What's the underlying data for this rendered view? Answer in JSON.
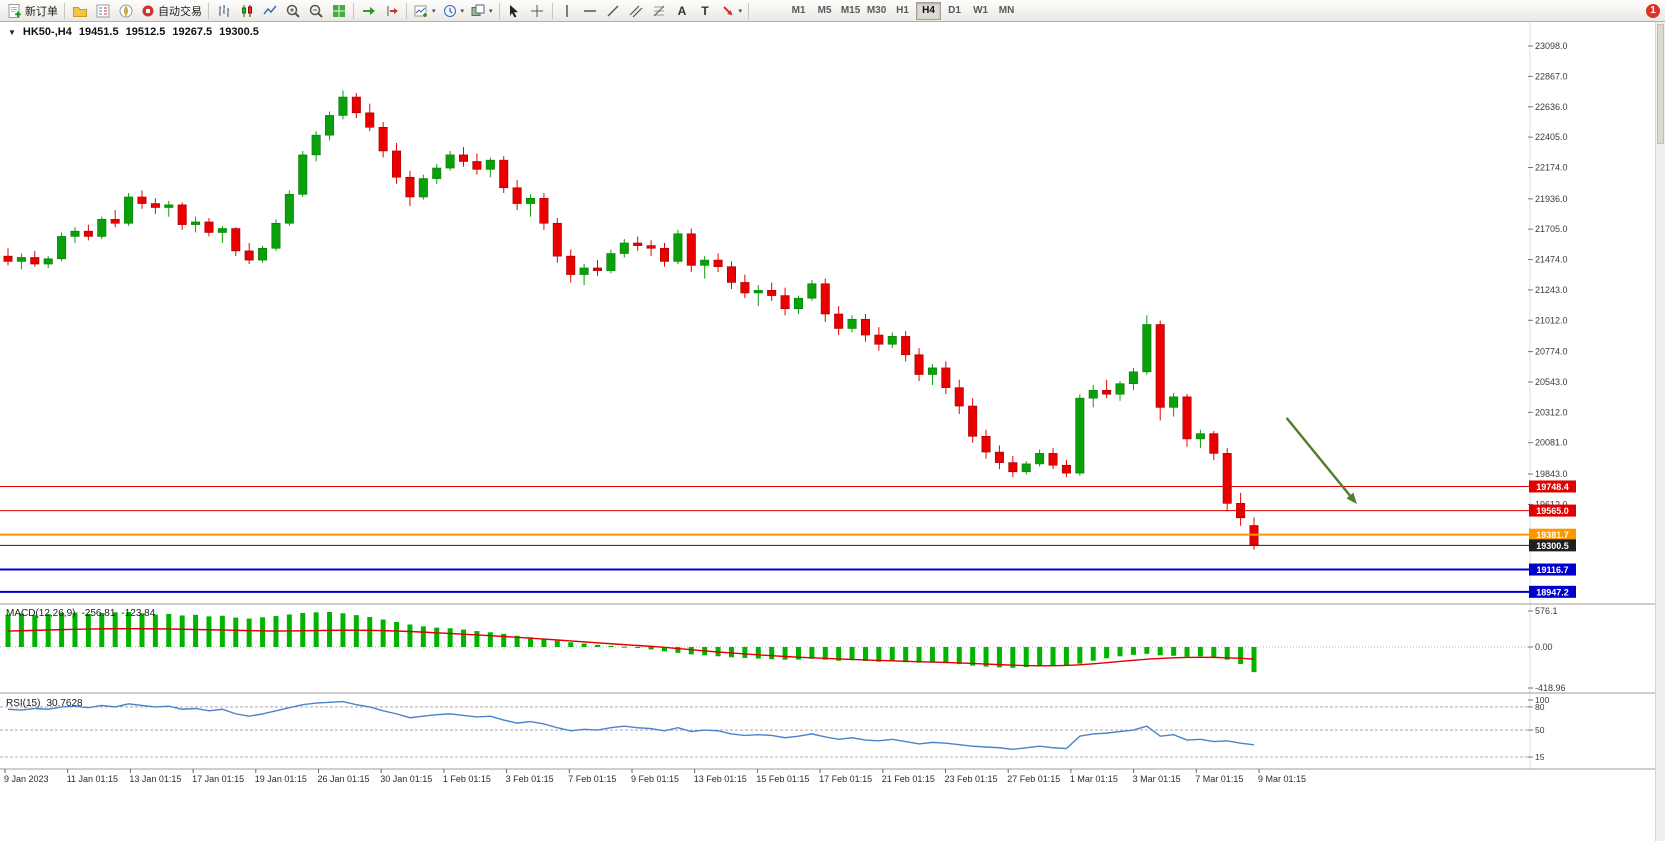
{
  "toolbar": {
    "new_order_label": "新订单",
    "autotrading_label": "自动交易",
    "badge_count": "1",
    "active_timeframe": "H4",
    "timeframes": [
      "M1",
      "M5",
      "M15",
      "M30",
      "H1",
      "H4",
      "D1",
      "W1",
      "MN"
    ],
    "items": [
      {
        "name": "new-order",
        "label": "新订单",
        "icon": "new-order-icon"
      },
      {
        "sep": true
      },
      {
        "name": "charts-profile",
        "icon": "profile-icon"
      },
      {
        "name": "market-watch",
        "icon": "market-watch-icon"
      },
      {
        "name": "navigator",
        "icon": "navigator-icon"
      },
      {
        "name": "autotrading",
        "label": "自动交易",
        "icon": "autotrading-icon"
      },
      {
        "sep": true
      },
      {
        "name": "bar-chart",
        "icon": "bar-chart-icon"
      },
      {
        "name": "candlestick-chart",
        "icon": "candlestick-icon"
      },
      {
        "name": "line-chart",
        "icon": "line-chart-icon"
      },
      {
        "name": "zoom-in",
        "icon": "zoom-in-icon"
      },
      {
        "name": "zoom-out",
        "icon": "zoom-out-icon"
      },
      {
        "name": "tile-windows",
        "icon": "tile-windows-icon"
      },
      {
        "sep": true
      },
      {
        "name": "auto-scroll",
        "icon": "auto-scroll-icon"
      },
      {
        "name": "chart-shift",
        "icon": "chart-shift-icon"
      },
      {
        "sep": true
      },
      {
        "name": "new-chart",
        "icon": "new-chart-icon",
        "caret": true
      },
      {
        "name": "period",
        "icon": "period-icon",
        "caret": true
      },
      {
        "name": "templates",
        "icon": "templates-icon",
        "caret": true
      },
      {
        "sep": true
      },
      {
        "name": "cursor",
        "icon": "cursor-icon"
      },
      {
        "name": "crosshair",
        "icon": "crosshair-icon"
      },
      {
        "sep": true
      },
      {
        "name": "vertical-line",
        "icon": "vline-icon"
      },
      {
        "name": "horizontal-line",
        "icon": "hline-icon"
      },
      {
        "name": "trendline",
        "icon": "trendline-icon"
      },
      {
        "name": "equidistant-channel",
        "icon": "channel-icon"
      },
      {
        "name": "fibonacci",
        "icon": "fibo-icon"
      },
      {
        "name": "text",
        "icon": "text-icon"
      },
      {
        "name": "text-label",
        "icon": "label-icon"
      },
      {
        "name": "arrows",
        "icon": "arrows-icon",
        "caret": true
      },
      {
        "sep": true
      }
    ]
  },
  "colors": {
    "bull": "#0aa00a",
    "bear": "#ea0000",
    "macd_hist": "#00b400",
    "macd_signal": "#e00000",
    "rsi_line": "#4b83c8",
    "axis_text": "#3a3a3a",
    "arrow": "#4f7f2f"
  },
  "chart_data": {
    "type": "candlestick",
    "symbol": "HK50-",
    "timeframe": "H4",
    "header": {
      "symbol": "HK50-,H4",
      "open": "19451.5",
      "high": "19512.5",
      "low": "19267.5",
      "close": "19300.5"
    },
    "price_axis_ticks": [
      "23098.0",
      "22867.0",
      "22636.0",
      "22405.0",
      "22174.0",
      "21936.0",
      "21705.0",
      "21474.0",
      "21243.0",
      "21012.0",
      "20774.0",
      "20543.0",
      "20312.0",
      "20081.0",
      "19843.0",
      "19612.0"
    ],
    "levels": [
      {
        "price": 19748.4,
        "label": "19748.4",
        "color": "#e00000",
        "width": 1
      },
      {
        "price": 19565.0,
        "label": "19565.0",
        "color": "#e00000",
        "width": 1
      },
      {
        "price": 19381.7,
        "label": "19381.7",
        "color": "#ff9800",
        "width": 2
      },
      {
        "price": 19300.5,
        "label": "19300.5",
        "color": "#202020",
        "width": 1,
        "role": "bid"
      },
      {
        "price": 19116.7,
        "label": "19116.7",
        "color": "#0000cd",
        "width": 2
      },
      {
        "price": 18947.2,
        "label": "18947.2",
        "color": "#0000cd",
        "width": 2
      }
    ],
    "time_labels": [
      "9 Jan 2023",
      "11 Jan 01:15",
      "13 Jan 01:15",
      "17 Jan 01:15",
      "19 Jan 01:15",
      "26 Jan 01:15",
      "30 Jan 01:15",
      "1 Feb 01:15",
      "3 Feb 01:15",
      "7 Feb 01:15",
      "9 Feb 01:15",
      "13 Feb 01:15",
      "15 Feb 01:15",
      "17 Feb 01:15",
      "21 Feb 01:15",
      "23 Feb 01:15",
      "27 Feb 01:15",
      "1 Mar 01:15",
      "3 Mar 01:15",
      "7 Mar 01:15",
      "9 Mar 01:15"
    ],
    "candles_ohlc": [
      [
        21500,
        21560,
        21430,
        21460
      ],
      [
        21460,
        21520,
        21400,
        21490
      ],
      [
        21490,
        21540,
        21420,
        21440
      ],
      [
        21440,
        21500,
        21410,
        21480
      ],
      [
        21480,
        21680,
        21460,
        21650
      ],
      [
        21650,
        21720,
        21600,
        21690
      ],
      [
        21690,
        21740,
        21620,
        21650
      ],
      [
        21650,
        21800,
        21630,
        21780
      ],
      [
        21780,
        21850,
        21720,
        21750
      ],
      [
        21750,
        21980,
        21730,
        21950
      ],
      [
        21950,
        22000,
        21860,
        21900
      ],
      [
        21900,
        21940,
        21820,
        21870
      ],
      [
        21870,
        21920,
        21800,
        21890
      ],
      [
        21890,
        21910,
        21700,
        21740
      ],
      [
        21740,
        21800,
        21680,
        21760
      ],
      [
        21760,
        21790,
        21650,
        21680
      ],
      [
        21680,
        21730,
        21600,
        21710
      ],
      [
        21710,
        21720,
        21500,
        21540
      ],
      [
        21540,
        21600,
        21440,
        21470
      ],
      [
        21470,
        21580,
        21450,
        21560
      ],
      [
        21560,
        21780,
        21540,
        21750
      ],
      [
        21750,
        22000,
        21730,
        21970
      ],
      [
        21970,
        22300,
        21950,
        22270
      ],
      [
        22270,
        22450,
        22220,
        22420
      ],
      [
        22420,
        22600,
        22380,
        22570
      ],
      [
        22570,
        22760,
        22540,
        22710
      ],
      [
        22710,
        22740,
        22550,
        22590
      ],
      [
        22590,
        22660,
        22450,
        22480
      ],
      [
        22480,
        22520,
        22250,
        22300
      ],
      [
        22300,
        22360,
        22050,
        22100
      ],
      [
        22100,
        22150,
        21880,
        21950
      ],
      [
        21950,
        22120,
        21930,
        22090
      ],
      [
        22090,
        22200,
        22050,
        22170
      ],
      [
        22170,
        22300,
        22150,
        22270
      ],
      [
        22270,
        22330,
        22180,
        22220
      ],
      [
        22220,
        22280,
        22120,
        22160
      ],
      [
        22160,
        22250,
        22100,
        22230
      ],
      [
        22230,
        22260,
        21980,
        22020
      ],
      [
        22020,
        22080,
        21850,
        21900
      ],
      [
        21900,
        21970,
        21800,
        21940
      ],
      [
        21940,
        21980,
        21700,
        21750
      ],
      [
        21750,
        21790,
        21450,
        21500
      ],
      [
        21500,
        21550,
        21300,
        21360
      ],
      [
        21360,
        21440,
        21280,
        21410
      ],
      [
        21410,
        21470,
        21350,
        21390
      ],
      [
        21390,
        21550,
        21370,
        21520
      ],
      [
        21520,
        21630,
        21490,
        21600
      ],
      [
        21600,
        21650,
        21540,
        21580
      ],
      [
        21580,
        21620,
        21500,
        21560
      ],
      [
        21560,
        21600,
        21420,
        21460
      ],
      [
        21460,
        21700,
        21440,
        21670
      ],
      [
        21670,
        21710,
        21380,
        21430
      ],
      [
        21430,
        21500,
        21330,
        21470
      ],
      [
        21470,
        21520,
        21380,
        21420
      ],
      [
        21420,
        21460,
        21250,
        21300
      ],
      [
        21300,
        21360,
        21180,
        21220
      ],
      [
        21220,
        21280,
        21120,
        21240
      ],
      [
        21240,
        21300,
        21160,
        21200
      ],
      [
        21200,
        21260,
        21050,
        21100
      ],
      [
        21100,
        21200,
        21060,
        21180
      ],
      [
        21180,
        21320,
        21160,
        21290
      ],
      [
        21290,
        21330,
        21000,
        21060
      ],
      [
        21060,
        21120,
        20900,
        20950
      ],
      [
        20950,
        21050,
        20920,
        21020
      ],
      [
        21020,
        21060,
        20850,
        20900
      ],
      [
        20900,
        20960,
        20780,
        20830
      ],
      [
        20830,
        20920,
        20800,
        20890
      ],
      [
        20890,
        20930,
        20700,
        20750
      ],
      [
        20750,
        20800,
        20550,
        20600
      ],
      [
        20600,
        20680,
        20520,
        20650
      ],
      [
        20650,
        20700,
        20450,
        20500
      ],
      [
        20500,
        20560,
        20300,
        20360
      ],
      [
        20360,
        20420,
        20080,
        20130
      ],
      [
        20130,
        20180,
        19960,
        20010
      ],
      [
        20010,
        20060,
        19880,
        19930
      ],
      [
        19930,
        19980,
        19820,
        19860
      ],
      [
        19860,
        19940,
        19840,
        19920
      ],
      [
        19920,
        20030,
        19900,
        20000
      ],
      [
        20000,
        20040,
        19880,
        19910
      ],
      [
        19910,
        19950,
        19820,
        19850
      ],
      [
        19850,
        20450,
        19830,
        20420
      ],
      [
        20420,
        20520,
        20350,
        20480
      ],
      [
        20480,
        20560,
        20420,
        20450
      ],
      [
        20450,
        20550,
        20400,
        20530
      ],
      [
        20530,
        20650,
        20480,
        20620
      ],
      [
        20620,
        21050,
        20600,
        20980
      ],
      [
        20980,
        21010,
        20250,
        20350
      ],
      [
        20350,
        20460,
        20280,
        20430
      ],
      [
        20430,
        20450,
        20050,
        20110
      ],
      [
        20110,
        20180,
        20040,
        20150
      ],
      [
        20150,
        20170,
        19950,
        20000
      ],
      [
        20000,
        20040,
        19560,
        19620
      ],
      [
        19620,
        19700,
        19450,
        19510
      ],
      [
        19451.5,
        19512.5,
        19267.5,
        19300.5
      ]
    ],
    "indicators": {
      "macd": {
        "title": "MACD(12,26,9)",
        "value_main": "-256.81",
        "value_signal": "-123.84",
        "axis": [
          {
            "label": "576.1",
            "value": 576.1
          },
          {
            "label": "0.00",
            "value": 0
          },
          {
            "label": "-418.96",
            "value": -418.96
          }
        ],
        "histogram": [
          520,
          535,
          510,
          525,
          545,
          550,
          530,
          545,
          555,
          560,
          540,
          520,
          530,
          505,
          515,
          490,
          500,
          470,
          455,
          475,
          495,
          520,
          545,
          555,
          560,
          540,
          510,
          480,
          440,
          400,
          360,
          330,
          310,
          300,
          280,
          255,
          235,
          210,
          180,
          155,
          130,
          100,
          75,
          55,
          35,
          18,
          5,
          -10,
          -25,
          -45,
          -60,
          -75,
          -85,
          -95,
          -105,
          -112,
          -118,
          -125,
          -130,
          -128,
          -120,
          -130,
          -140,
          -135,
          -142,
          -150,
          -148,
          -155,
          -160,
          -158,
          -165,
          -175,
          -190,
          -200,
          -208,
          -212,
          -205,
          -195,
          -185,
          -192,
          -170,
          -140,
          -115,
          -95,
          -80,
          -70,
          -85,
          -90,
          -100,
          -95,
          -105,
          -130,
          -175,
          -256.81
        ],
        "signal": [
          255,
          260,
          266,
          272,
          278,
          283,
          287,
          290,
          292,
          293,
          292,
          290,
          288,
          284,
          280,
          276,
          272,
          267,
          262,
          258,
          256,
          257,
          260,
          263,
          266,
          268,
          268,
          266,
          262,
          256,
          248,
          238,
          227,
          216,
          205,
          193,
          181,
          168,
          155,
          141,
          127,
          112,
          97,
          82,
          67,
          52,
          38,
          24,
          10,
          -3,
          -16,
          -28,
          -40,
          -51,
          -61,
          -71,
          -80,
          -89,
          -97,
          -104,
          -110,
          -116,
          -122,
          -127,
          -132,
          -137,
          -141,
          -146,
          -150,
          -154,
          -158,
          -163,
          -168,
          -174,
          -180,
          -186,
          -190,
          -192,
          -191,
          -188,
          -182,
          -172,
          -160,
          -148,
          -136,
          -125,
          -117,
          -111,
          -107,
          -105,
          -106,
          -110,
          -116,
          -123.84
        ]
      },
      "rsi": {
        "title": "RSI(15)",
        "value": "30.7628",
        "axis": [
          {
            "label": "100",
            "value": 100
          },
          {
            "label": "80",
            "value": 80
          },
          {
            "label": "50",
            "value": 50
          },
          {
            "label": "15",
            "value": 15
          }
        ],
        "values": [
          77,
          76,
          78,
          77,
          80,
          81,
          79,
          82,
          80,
          84,
          82,
          80,
          81,
          77,
          78,
          75,
          77,
          71,
          68,
          71,
          75,
          79,
          83,
          85,
          86,
          87,
          83,
          80,
          75,
          71,
          66,
          68,
          70,
          71,
          69,
          67,
          68,
          63,
          59,
          61,
          58,
          53,
          49,
          51,
          50,
          53,
          55,
          53,
          52,
          49,
          53,
          48,
          50,
          49,
          45,
          43,
          44,
          43,
          40,
          42,
          45,
          41,
          38,
          40,
          37,
          36,
          38,
          35,
          32,
          34,
          33,
          31,
          29,
          28,
          27,
          25,
          27,
          29,
          27,
          26,
          42,
          45,
          46,
          48,
          50,
          55,
          42,
          44,
          37,
          38,
          35,
          36,
          33,
          30.7628
        ]
      }
    },
    "annotation_arrow": {
      "color": "#4f7f2f",
      "from": {
        "x_frac": 0.842,
        "price": 20270
      },
      "to": {
        "x_frac": 0.888,
        "price": 19615
      }
    }
  }
}
